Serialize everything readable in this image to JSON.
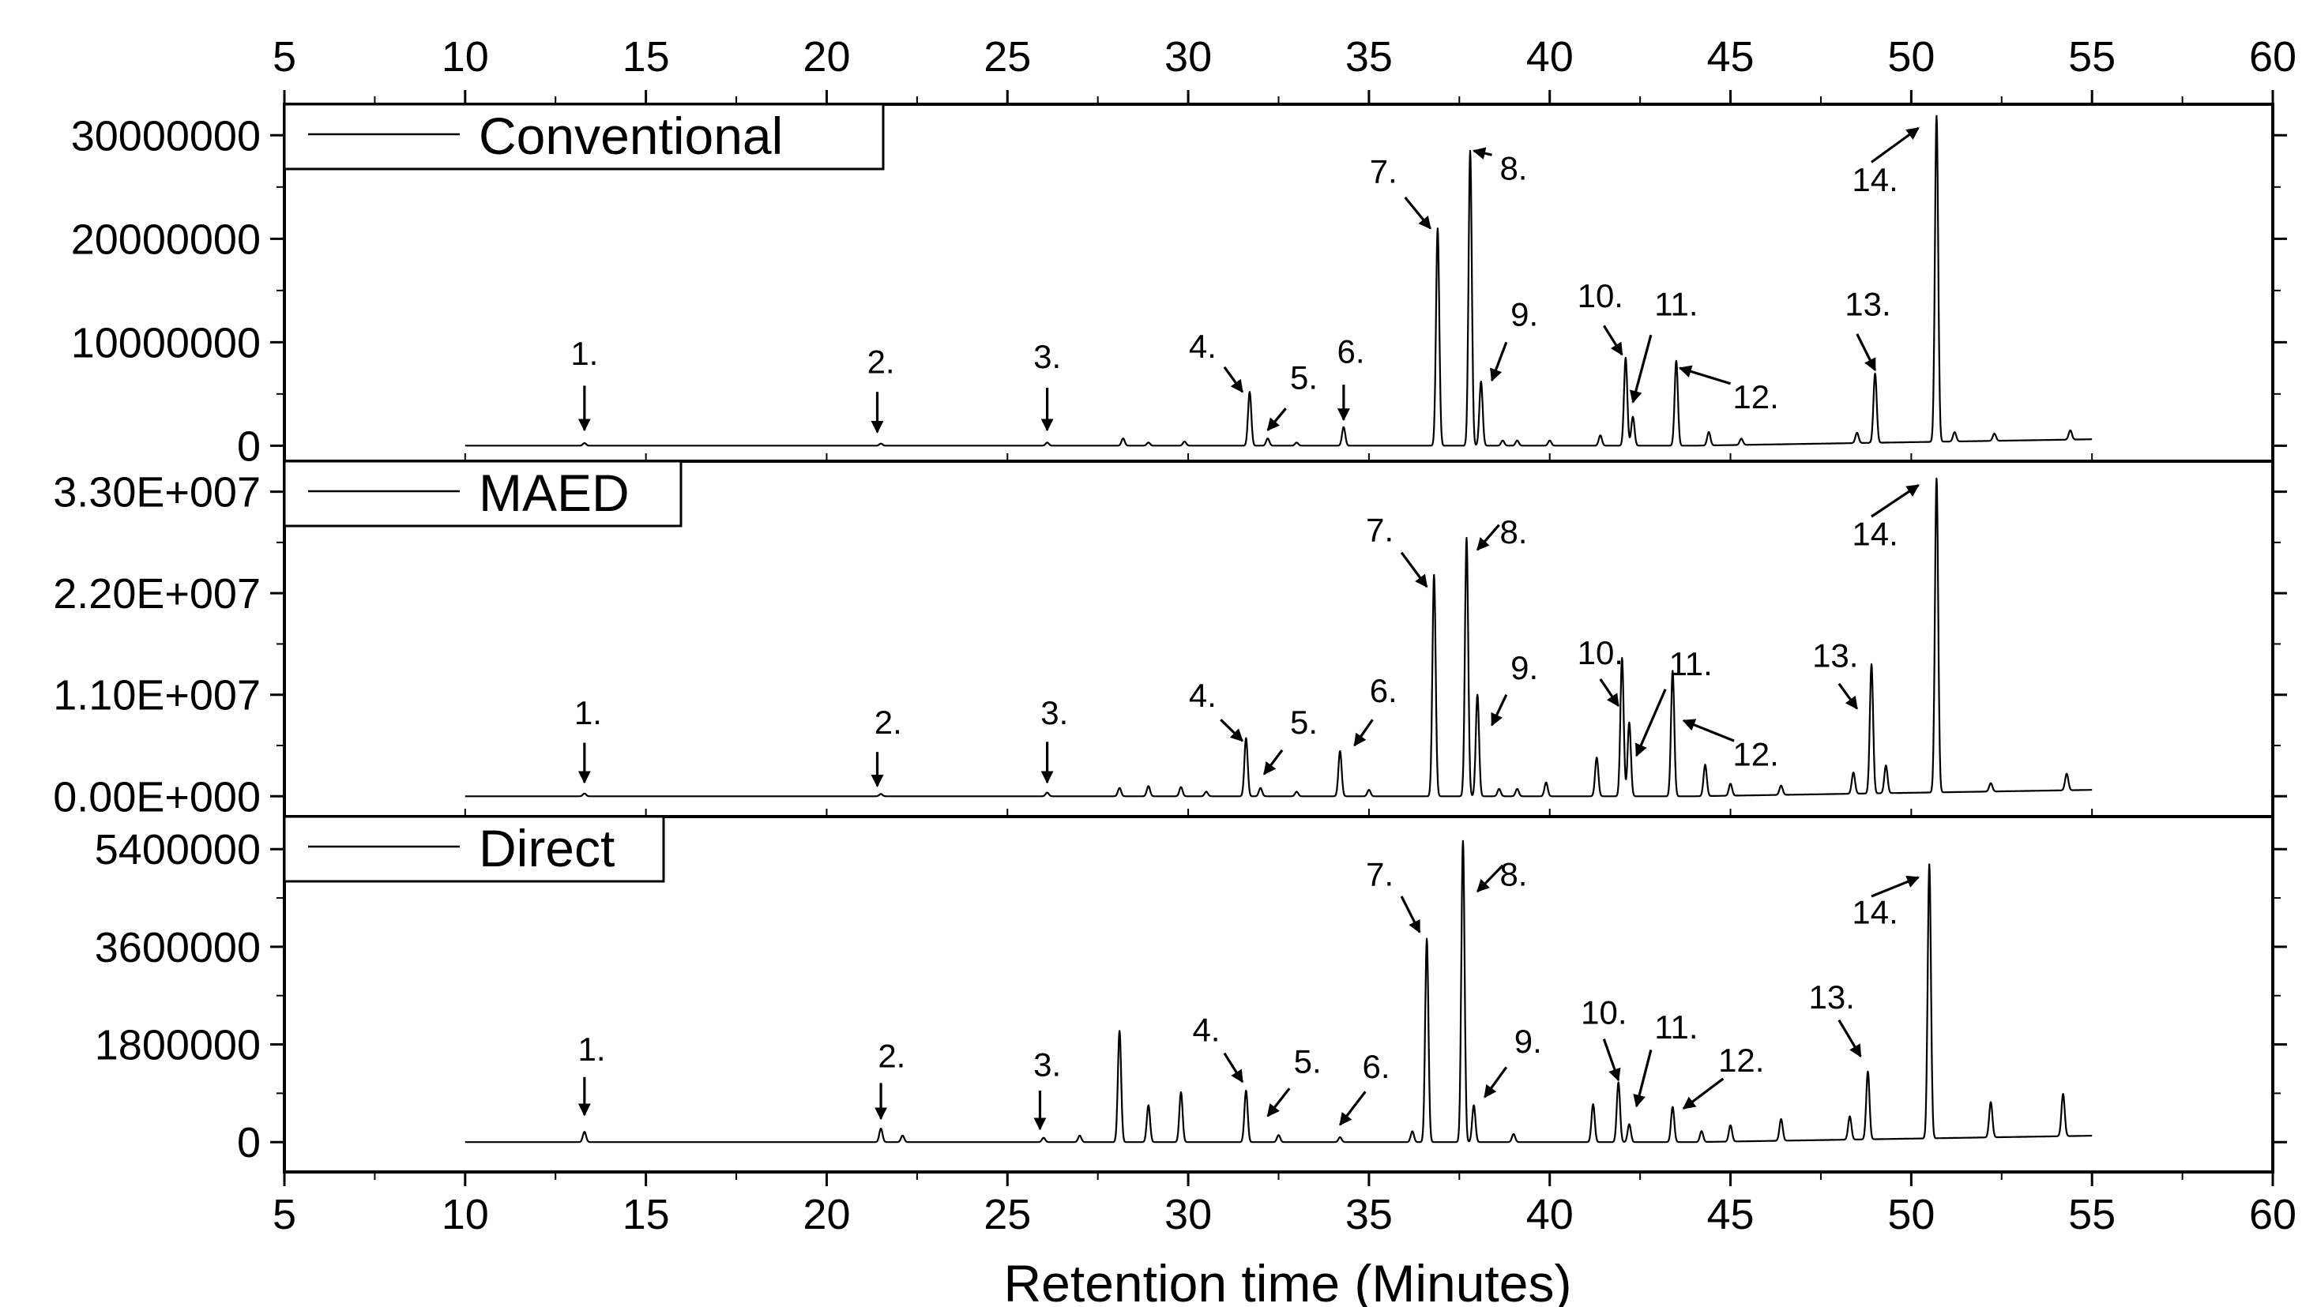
{
  "chart_data": {
    "type": "line",
    "xlabel": "Retention time (Minutes)",
    "xlim": [
      5,
      60
    ],
    "x_ticks": [
      5,
      10,
      15,
      20,
      25,
      30,
      35,
      40,
      45,
      50,
      55,
      60
    ],
    "baseline_range": [
      10,
      55
    ],
    "colors": {
      "line": "#000000",
      "background": "#ffffff"
    },
    "panels": [
      {
        "name": "Conventional",
        "ylim": [
          -1500000,
          33000000
        ],
        "y_ticks": [
          {
            "value": 0,
            "label": "0"
          },
          {
            "value": 10000000,
            "label": "10000000"
          },
          {
            "value": 20000000,
            "label": "20000000"
          },
          {
            "value": 30000000,
            "label": "30000000"
          }
        ],
        "peaks": [
          {
            "x": 13.3,
            "y": 250000
          },
          {
            "x": 21.5,
            "y": 200000
          },
          {
            "x": 26.1,
            "y": 300000
          },
          {
            "x": 28.2,
            "y": 700000
          },
          {
            "x": 28.9,
            "y": 300000
          },
          {
            "x": 29.9,
            "y": 400000
          },
          {
            "x": 31.7,
            "y": 5200000
          },
          {
            "x": 32.2,
            "y": 700000
          },
          {
            "x": 33.0,
            "y": 300000
          },
          {
            "x": 34.3,
            "y": 1800000
          },
          {
            "x": 36.9,
            "y": 21000000
          },
          {
            "x": 37.8,
            "y": 28500000
          },
          {
            "x": 38.1,
            "y": 6200000
          },
          {
            "x": 38.7,
            "y": 500000
          },
          {
            "x": 39.1,
            "y": 500000
          },
          {
            "x": 40.0,
            "y": 500000
          },
          {
            "x": 41.4,
            "y": 1000000
          },
          {
            "x": 42.1,
            "y": 8500000
          },
          {
            "x": 42.3,
            "y": 2800000
          },
          {
            "x": 43.5,
            "y": 8200000
          },
          {
            "x": 44.4,
            "y": 1300000
          },
          {
            "x": 45.3,
            "y": 600000
          },
          {
            "x": 48.5,
            "y": 1000000
          },
          {
            "x": 49.0,
            "y": 6700000
          },
          {
            "x": 50.7,
            "y": 31500000
          },
          {
            "x": 51.2,
            "y": 900000
          },
          {
            "x": 52.3,
            "y": 700000
          },
          {
            "x": 54.4,
            "y": 900000
          }
        ],
        "annotations": [
          {
            "label": "1.",
            "x": 13.3,
            "text_y": 7800000,
            "arrow_from": [
              13.3,
              5800000
            ],
            "arrow_to": [
              13.3,
              1500000
            ]
          },
          {
            "label": "2.",
            "x": 21.5,
            "text_y": 7000000,
            "arrow_from": [
              21.4,
              5200000
            ],
            "arrow_to": [
              21.4,
              1300000
            ]
          },
          {
            "label": "3.",
            "x": 26.1,
            "text_y": 7500000,
            "arrow_from": [
              26.1,
              5600000
            ],
            "arrow_to": [
              26.1,
              1500000
            ]
          },
          {
            "label": "4.",
            "x": 30.4,
            "text_y": 8500000,
            "arrow_from": [
              31.0,
              7600000
            ],
            "arrow_to": [
              31.5,
              5200000
            ]
          },
          {
            "label": "5.",
            "x": 33.2,
            "text_y": 5500000,
            "arrow_from": [
              32.7,
              3600000
            ],
            "arrow_to": [
              32.2,
              1500000
            ]
          },
          {
            "label": "6.",
            "x": 34.5,
            "text_y": 8000000,
            "arrow_from": [
              34.3,
              5900000
            ],
            "arrow_to": [
              34.3,
              2500000
            ]
          },
          {
            "label": "7.",
            "x": 35.4,
            "text_y": 25400000,
            "arrow_from": [
              36.0,
              24000000
            ],
            "arrow_to": [
              36.7,
              21000000
            ]
          },
          {
            "label": "8.",
            "x": 39.0,
            "text_y": 25700000,
            "arrow_from": [
              38.4,
              28100000
            ],
            "arrow_to": [
              37.9,
              28500000
            ]
          },
          {
            "label": "9.",
            "x": 39.3,
            "text_y": 11600000,
            "arrow_from": [
              38.8,
              10000000
            ],
            "arrow_to": [
              38.4,
              6300000
            ]
          },
          {
            "label": "10.",
            "x": 41.4,
            "text_y": 13400000,
            "arrow_from": [
              41.5,
              11600000
            ],
            "arrow_to": [
              42.0,
              8800000
            ]
          },
          {
            "label": "11.",
            "x": 43.5,
            "text_y": 12600000,
            "arrow_from": [
              42.8,
              10700000
            ],
            "arrow_to": [
              42.3,
              4200000
            ]
          },
          {
            "label": "12.",
            "x": 45.7,
            "text_y": 3600000,
            "arrow_from": [
              45.0,
              6000000
            ],
            "arrow_to": [
              43.6,
              7500000
            ]
          },
          {
            "label": "13.",
            "x": 48.8,
            "text_y": 12600000,
            "arrow_from": [
              48.5,
              10800000
            ],
            "arrow_to": [
              49.0,
              7300000
            ]
          },
          {
            "label": "14.",
            "x": 49.0,
            "text_y": 24600000,
            "arrow_from": [
              48.9,
              27400000
            ],
            "arrow_to": [
              50.2,
              30700000
            ]
          }
        ]
      },
      {
        "name": "MAED",
        "ylim": [
          -2200000,
          36300000
        ],
        "y_ticks": [
          {
            "value": 0,
            "label": "0.00E+000"
          },
          {
            "value": 11000000,
            "label": "1.10E+007"
          },
          {
            "value": 22000000,
            "label": "2.20E+007"
          },
          {
            "value": 33000000,
            "label": "3.30E+007"
          }
        ],
        "peaks": [
          {
            "x": 13.3,
            "y": 300000
          },
          {
            "x": 21.5,
            "y": 250000
          },
          {
            "x": 26.1,
            "y": 400000
          },
          {
            "x": 28.1,
            "y": 900000
          },
          {
            "x": 28.9,
            "y": 1100000
          },
          {
            "x": 29.8,
            "y": 1000000
          },
          {
            "x": 30.5,
            "y": 500000
          },
          {
            "x": 31.6,
            "y": 6300000
          },
          {
            "x": 32.0,
            "y": 900000
          },
          {
            "x": 33.0,
            "y": 500000
          },
          {
            "x": 34.2,
            "y": 4900000
          },
          {
            "x": 35.0,
            "y": 700000
          },
          {
            "x": 36.8,
            "y": 24000000
          },
          {
            "x": 37.7,
            "y": 28000000
          },
          {
            "x": 38.0,
            "y": 11000000
          },
          {
            "x": 38.6,
            "y": 800000
          },
          {
            "x": 39.1,
            "y": 800000
          },
          {
            "x": 39.9,
            "y": 1500000
          },
          {
            "x": 41.3,
            "y": 4200000
          },
          {
            "x": 42.0,
            "y": 15000000
          },
          {
            "x": 42.2,
            "y": 8000000
          },
          {
            "x": 43.4,
            "y": 13600000
          },
          {
            "x": 44.3,
            "y": 3400000
          },
          {
            "x": 45.0,
            "y": 1300000
          },
          {
            "x": 46.4,
            "y": 1000000
          },
          {
            "x": 48.4,
            "y": 2300000
          },
          {
            "x": 48.9,
            "y": 14000000
          },
          {
            "x": 49.3,
            "y": 3000000
          },
          {
            "x": 50.7,
            "y": 34000000
          },
          {
            "x": 52.2,
            "y": 900000
          },
          {
            "x": 54.3,
            "y": 1800000
          }
        ],
        "annotations": [
          {
            "label": "1.",
            "x": 13.4,
            "text_y": 7800000,
            "arrow_from": [
              13.3,
              5800000
            ],
            "arrow_to": [
              13.3,
              1500000
            ]
          },
          {
            "label": "2.",
            "x": 21.7,
            "text_y": 6800000,
            "arrow_from": [
              21.4,
              4800000
            ],
            "arrow_to": [
              21.4,
              1100000
            ]
          },
          {
            "label": "3.",
            "x": 26.3,
            "text_y": 7800000,
            "arrow_from": [
              26.1,
              5900000
            ],
            "arrow_to": [
              26.1,
              1500000
            ]
          },
          {
            "label": "4.",
            "x": 30.4,
            "text_y": 9700000,
            "arrow_from": [
              30.9,
              8300000
            ],
            "arrow_to": [
              31.5,
              6000000
            ]
          },
          {
            "label": "5.",
            "x": 33.2,
            "text_y": 6800000,
            "arrow_from": [
              32.6,
              5000000
            ],
            "arrow_to": [
              32.1,
              2400000
            ]
          },
          {
            "label": "6.",
            "x": 35.4,
            "text_y": 10200000,
            "arrow_from": [
              35.1,
              8300000
            ],
            "arrow_to": [
              34.6,
              5500000
            ]
          },
          {
            "label": "7.",
            "x": 35.3,
            "text_y": 27600000,
            "arrow_from": [
              35.9,
              26400000
            ],
            "arrow_to": [
              36.6,
              22700000
            ]
          },
          {
            "label": "8.",
            "x": 39.0,
            "text_y": 27400000,
            "arrow_from": [
              38.6,
              29400000
            ],
            "arrow_to": [
              38.0,
              26700000
            ]
          },
          {
            "label": "9.",
            "x": 39.3,
            "text_y": 12700000,
            "arrow_from": [
              38.8,
              11000000
            ],
            "arrow_to": [
              38.4,
              7700000
            ]
          },
          {
            "label": "10.",
            "x": 41.4,
            "text_y": 14300000,
            "arrow_from": [
              41.4,
              12700000
            ],
            "arrow_to": [
              41.9,
              9800000
            ]
          },
          {
            "label": "11.",
            "x": 43.9,
            "text_y": 13100000,
            "arrow_from": [
              43.2,
              11600000
            ],
            "arrow_to": [
              42.4,
              4400000
            ]
          },
          {
            "label": "12.",
            "x": 45.7,
            "text_y": 3300000,
            "arrow_from": [
              45.1,
              6000000
            ],
            "arrow_to": [
              43.7,
              8200000
            ]
          },
          {
            "label": "13.",
            "x": 47.9,
            "text_y": 14000000,
            "arrow_from": [
              48.0,
              12200000
            ],
            "arrow_to": [
              48.5,
              9500000
            ]
          },
          {
            "label": "14.",
            "x": 49.0,
            "text_y": 27200000,
            "arrow_from": [
              48.9,
              30300000
            ],
            "arrow_to": [
              50.2,
              33700000
            ]
          }
        ]
      },
      {
        "name": "Direct",
        "ylim": [
          -550000,
          6000000
        ],
        "y_ticks": [
          {
            "value": 0,
            "label": "0"
          },
          {
            "value": 1800000,
            "label": "1800000"
          },
          {
            "value": 3600000,
            "label": "3600000"
          },
          {
            "value": 5400000,
            "label": "5400000"
          }
        ],
        "peaks": [
          {
            "x": 13.3,
            "y": 190000
          },
          {
            "x": 21.5,
            "y": 250000
          },
          {
            "x": 22.1,
            "y": 120000
          },
          {
            "x": 26.0,
            "y": 80000
          },
          {
            "x": 27.0,
            "y": 120000
          },
          {
            "x": 28.1,
            "y": 2050000
          },
          {
            "x": 28.9,
            "y": 680000
          },
          {
            "x": 29.8,
            "y": 920000
          },
          {
            "x": 31.6,
            "y": 950000
          },
          {
            "x": 32.5,
            "y": 130000
          },
          {
            "x": 34.2,
            "y": 90000
          },
          {
            "x": 36.2,
            "y": 200000
          },
          {
            "x": 36.6,
            "y": 3750000
          },
          {
            "x": 37.6,
            "y": 5550000
          },
          {
            "x": 37.9,
            "y": 680000
          },
          {
            "x": 39.0,
            "y": 150000
          },
          {
            "x": 41.2,
            "y": 700000
          },
          {
            "x": 41.9,
            "y": 1100000
          },
          {
            "x": 42.2,
            "y": 330000
          },
          {
            "x": 43.4,
            "y": 650000
          },
          {
            "x": 44.2,
            "y": 200000
          },
          {
            "x": 45.0,
            "y": 300000
          },
          {
            "x": 46.4,
            "y": 400000
          },
          {
            "x": 48.3,
            "y": 430000
          },
          {
            "x": 48.8,
            "y": 1250000
          },
          {
            "x": 50.5,
            "y": 5050000
          },
          {
            "x": 52.2,
            "y": 650000
          },
          {
            "x": 54.2,
            "y": 780000
          }
        ],
        "annotations": [
          {
            "label": "1.",
            "x": 13.5,
            "text_y": 1500000,
            "arrow_from": [
              13.3,
              1200000
            ],
            "arrow_to": [
              13.3,
              500000
            ]
          },
          {
            "label": "2.",
            "x": 21.8,
            "text_y": 1380000,
            "arrow_from": [
              21.5,
              1090000
            ],
            "arrow_to": [
              21.5,
              430000
            ]
          },
          {
            "label": "3.",
            "x": 26.1,
            "text_y": 1220000,
            "arrow_from": [
              25.9,
              950000
            ],
            "arrow_to": [
              25.9,
              240000
            ]
          },
          {
            "label": "4.",
            "x": 30.5,
            "text_y": 1860000,
            "arrow_from": [
              31.0,
              1640000
            ],
            "arrow_to": [
              31.5,
              1110000
            ]
          },
          {
            "label": "5.",
            "x": 33.3,
            "text_y": 1280000,
            "arrow_from": [
              32.8,
              990000
            ],
            "arrow_to": [
              32.2,
              480000
            ]
          },
          {
            "label": "6.",
            "x": 35.2,
            "text_y": 1180000,
            "arrow_from": [
              34.9,
              930000
            ],
            "arrow_to": [
              34.2,
              320000
            ]
          },
          {
            "label": "7.",
            "x": 35.3,
            "text_y": 4730000,
            "arrow_from": [
              35.9,
              4530000
            ],
            "arrow_to": [
              36.4,
              3870000
            ]
          },
          {
            "label": "8.",
            "x": 39.0,
            "text_y": 4730000,
            "arrow_from": [
              38.7,
              5100000
            ],
            "arrow_to": [
              38.0,
              4620000
            ]
          },
          {
            "label": "9.",
            "x": 39.4,
            "text_y": 1650000,
            "arrow_from": [
              38.8,
              1380000
            ],
            "arrow_to": [
              38.2,
              830000
            ]
          },
          {
            "label": "10.",
            "x": 41.5,
            "text_y": 2180000,
            "arrow_from": [
              41.5,
              1900000
            ],
            "arrow_to": [
              41.9,
              1140000
            ]
          },
          {
            "label": "11.",
            "x": 43.5,
            "text_y": 1910000,
            "arrow_from": [
              42.8,
              1700000
            ],
            "arrow_to": [
              42.4,
              660000
            ]
          },
          {
            "label": "12.",
            "x": 45.3,
            "text_y": 1300000,
            "arrow_from": [
              44.8,
              1170000
            ],
            "arrow_to": [
              43.7,
              620000
            ]
          },
          {
            "label": "13.",
            "x": 47.8,
            "text_y": 2460000,
            "arrow_from": [
              48.0,
              2250000
            ],
            "arrow_to": [
              48.6,
              1580000
            ]
          },
          {
            "label": "14.",
            "x": 49.0,
            "text_y": 4030000,
            "arrow_from": [
              48.9,
              4530000
            ],
            "arrow_to": [
              50.2,
              4880000
            ]
          }
        ]
      }
    ]
  }
}
